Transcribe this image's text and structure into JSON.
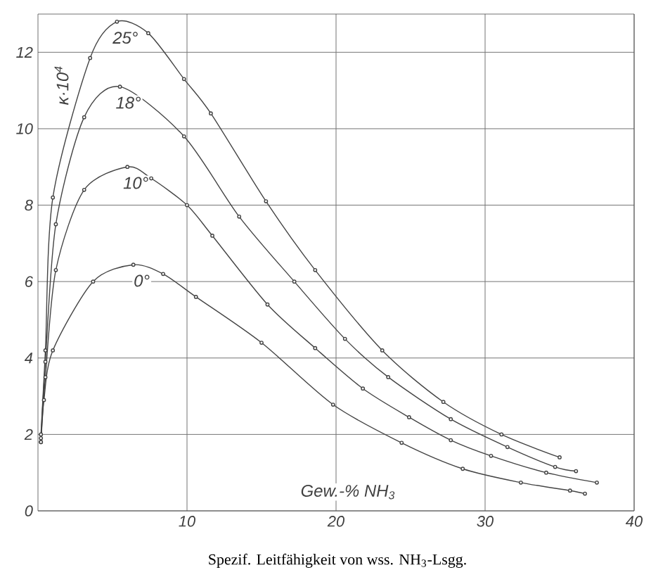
{
  "chart_data": {
    "type": "line",
    "title": "Spezif. Leitfähigkeit von wss. NH$_{3}$-Lsgg.",
    "xlabel": "Gew.-% NH$_{3}$",
    "ylabel": "κ·10$^{4}$",
    "xlim": [
      0,
      40
    ],
    "ylim": [
      0,
      13
    ],
    "xticks": [
      10,
      20,
      30,
      40
    ],
    "yticks": [
      0,
      2,
      4,
      6,
      8,
      10,
      12
    ],
    "grid": true,
    "marker": "circle",
    "line_style": "solid",
    "series": [
      {
        "name": "25°",
        "color": "#444444",
        "x": [
          0.2,
          0.5,
          1.0,
          3.5,
          5.3,
          7.4,
          9.8,
          11.6,
          15.3,
          18.6,
          23.1,
          27.2,
          31.1,
          35.0
        ],
        "values": [
          2.0,
          4.2,
          8.2,
          11.85,
          12.8,
          12.5,
          11.3,
          10.4,
          8.1,
          6.3,
          4.2,
          2.85,
          2.0,
          1.4
        ]
      },
      {
        "name": "18°",
        "color": "#444444",
        "x": [
          0.2,
          0.5,
          1.2,
          3.1,
          5.5,
          9.8,
          13.5,
          17.2,
          20.6,
          23.5,
          27.7,
          31.5,
          34.7,
          36.1
        ],
        "values": [
          1.9,
          3.9,
          7.5,
          10.3,
          11.1,
          9.8,
          7.7,
          6.0,
          4.5,
          3.5,
          2.4,
          1.67,
          1.15,
          1.04
        ]
      },
      {
        "name": "10°",
        "color": "#444444",
        "x": [
          0.2,
          0.5,
          1.2,
          3.1,
          6.0,
          7.6,
          10.0,
          11.7,
          15.4,
          18.6,
          21.8,
          24.9,
          27.7,
          30.4,
          34.1,
          37.5
        ],
        "values": [
          1.8,
          3.5,
          6.3,
          8.4,
          9.0,
          8.7,
          8.0,
          7.2,
          5.4,
          4.26,
          3.2,
          2.45,
          1.85,
          1.44,
          1.0,
          0.74
        ]
      },
      {
        "name": "0°",
        "color": "#444444",
        "x": [
          0.2,
          0.4,
          1.0,
          3.7,
          6.4,
          8.4,
          10.6,
          15.0,
          19.8,
          24.4,
          28.5,
          32.4,
          35.7,
          36.7
        ],
        "values": [
          1.8,
          2.9,
          4.2,
          6.0,
          6.44,
          6.2,
          5.6,
          4.4,
          2.78,
          1.78,
          1.1,
          0.74,
          0.53,
          0.45
        ]
      }
    ]
  }
}
